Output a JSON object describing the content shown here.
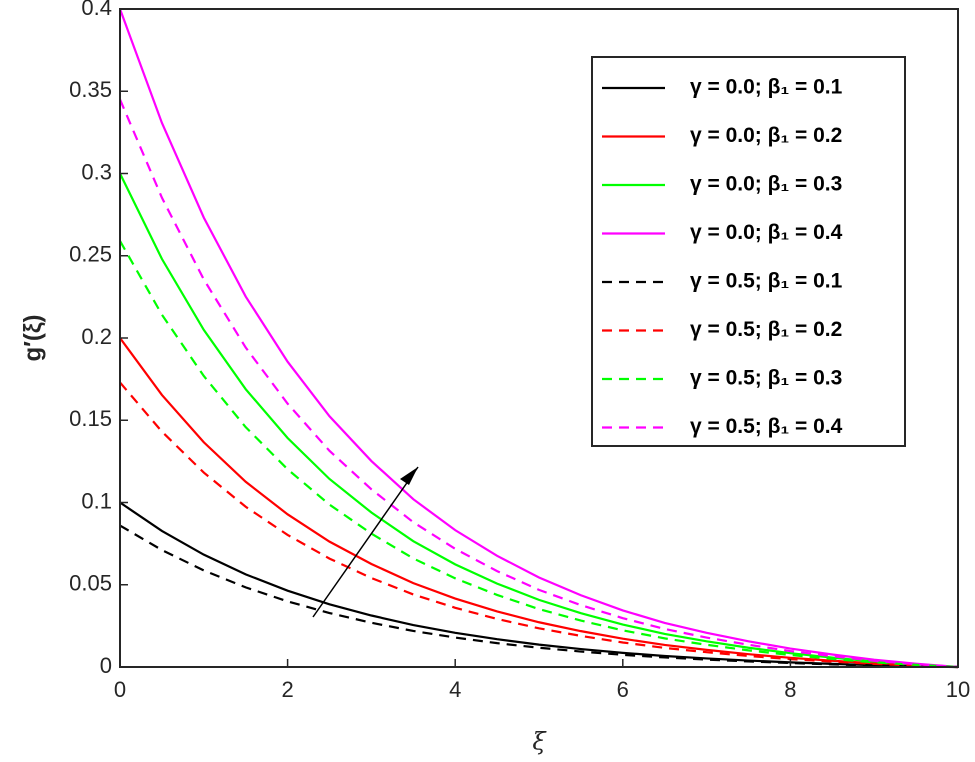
{
  "chart_data": {
    "type": "line",
    "x_label": "ξ",
    "y_label": "g′(ξ)",
    "x": [
      0,
      0.5,
      1,
      1.5,
      2,
      2.5,
      3,
      3.5,
      4,
      4.5,
      5,
      5.5,
      6,
      6.5,
      7,
      7.5,
      8,
      8.5,
      9,
      9.5,
      10
    ],
    "series": [
      {
        "name": "γ = 0.0; β₁ = 0.1",
        "color": "#000000",
        "dash": "solid",
        "values": [
          0.1,
          0.0827,
          0.0683,
          0.0563,
          0.0464,
          0.0381,
          0.0313,
          0.0255,
          0.0208,
          0.0169,
          0.0136,
          0.0109,
          0.0086,
          0.0067,
          0.0052,
          0.0039,
          0.0028,
          0.0019,
          0.0011,
          0.0005,
          0
        ]
      },
      {
        "name": "γ = 0.0; β₁ = 0.2",
        "color": "#ff0000",
        "dash": "solid",
        "values": [
          0.2,
          0.1654,
          0.1366,
          0.1126,
          0.0928,
          0.0762,
          0.0626,
          0.051,
          0.0416,
          0.0338,
          0.0272,
          0.0218,
          0.0172,
          0.0134,
          0.0104,
          0.0078,
          0.0056,
          0.0038,
          0.0022,
          0.001,
          0
        ]
      },
      {
        "name": "γ = 0.0; β₁ = 0.3",
        "color": "#00ff00",
        "dash": "solid",
        "values": [
          0.3,
          0.2481,
          0.2049,
          0.1689,
          0.1392,
          0.1143,
          0.0939,
          0.0765,
          0.0624,
          0.0507,
          0.0408,
          0.0327,
          0.0258,
          0.0201,
          0.0156,
          0.0117,
          0.0084,
          0.0057,
          0.0033,
          0.0015,
          0
        ]
      },
      {
        "name": "γ = 0.0; β₁ = 0.4",
        "color": "#ff00ff",
        "dash": "solid",
        "values": [
          0.4,
          0.3308,
          0.2732,
          0.2252,
          0.1856,
          0.1524,
          0.1252,
          0.102,
          0.0832,
          0.0676,
          0.0544,
          0.0436,
          0.0344,
          0.0268,
          0.0208,
          0.0156,
          0.0112,
          0.0076,
          0.0044,
          0.002,
          0
        ]
      },
      {
        "name": "γ = 0.5; β₁ = 0.1",
        "color": "#000000",
        "dash": "dashed",
        "values": [
          0.086,
          0.0711,
          0.0587,
          0.0484,
          0.0399,
          0.0328,
          0.0269,
          0.0219,
          0.0179,
          0.0145,
          0.0117,
          0.0094,
          0.0074,
          0.0058,
          0.0045,
          0.0034,
          0.0024,
          0.0016,
          0.0009,
          0.0004,
          0
        ]
      },
      {
        "name": "γ = 0.5; β₁ = 0.2",
        "color": "#ff0000",
        "dash": "dashed",
        "values": [
          0.173,
          0.1431,
          0.1182,
          0.0974,
          0.0803,
          0.0659,
          0.0541,
          0.0441,
          0.036,
          0.0292,
          0.0235,
          0.0189,
          0.0149,
          0.0116,
          0.009,
          0.0067,
          0.0048,
          0.0033,
          0.0019,
          0.0009,
          0
        ]
      },
      {
        "name": "γ = 0.5; β₁ = 0.3",
        "color": "#00ff00",
        "dash": "dashed",
        "values": [
          0.259,
          0.2142,
          0.1769,
          0.1458,
          0.1202,
          0.0987,
          0.0811,
          0.066,
          0.0539,
          0.0438,
          0.0352,
          0.0282,
          0.0223,
          0.0174,
          0.0135,
          0.0101,
          0.0073,
          0.0049,
          0.0028,
          0.0013,
          0
        ]
      },
      {
        "name": "γ = 0.5; β₁ = 0.4",
        "color": "#ff00ff",
        "dash": "dashed",
        "values": [
          0.345,
          0.2853,
          0.2356,
          0.1942,
          0.1601,
          0.1314,
          0.108,
          0.088,
          0.0718,
          0.0583,
          0.0469,
          0.0376,
          0.0297,
          0.0231,
          0.0179,
          0.0135,
          0.0097,
          0.0066,
          0.0038,
          0.0017,
          0
        ]
      }
    ],
    "xlim": [
      0,
      10
    ],
    "xticks": [
      0,
      2,
      4,
      6,
      8,
      10
    ],
    "ylim": [
      0,
      0.4
    ],
    "yticks": [
      0,
      0.05,
      0.1,
      0.15,
      0.2,
      0.25,
      0.3,
      0.35,
      0.4
    ],
    "grid": false,
    "legend": "upper right"
  }
}
